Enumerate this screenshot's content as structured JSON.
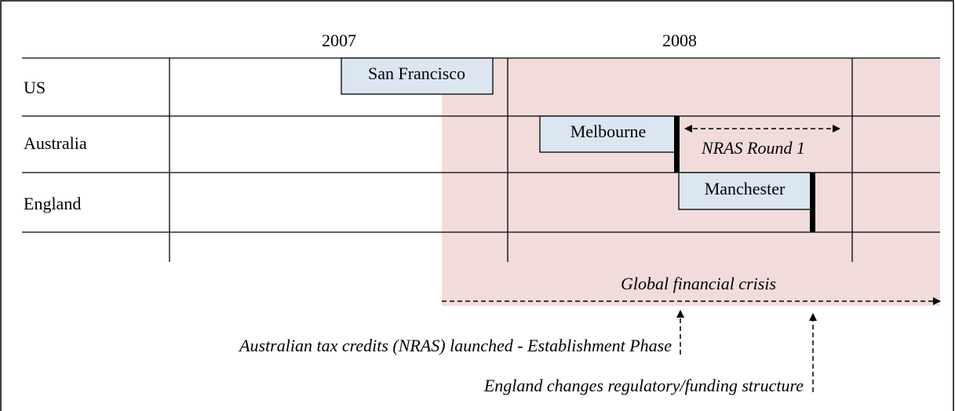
{
  "years": [
    "2007",
    "2008"
  ],
  "rows": [
    "US",
    "Australia",
    "England"
  ],
  "events": [
    "San Francisco",
    "Melbourne",
    "Manchester"
  ],
  "periods": {
    "nras_round": "NRAS Round 1",
    "crisis": "Global financial crisis"
  },
  "annotations": [
    "Australian tax credits (NRAS) launched - Establishment Phase",
    "England changes regulatory/funding structure"
  ]
}
